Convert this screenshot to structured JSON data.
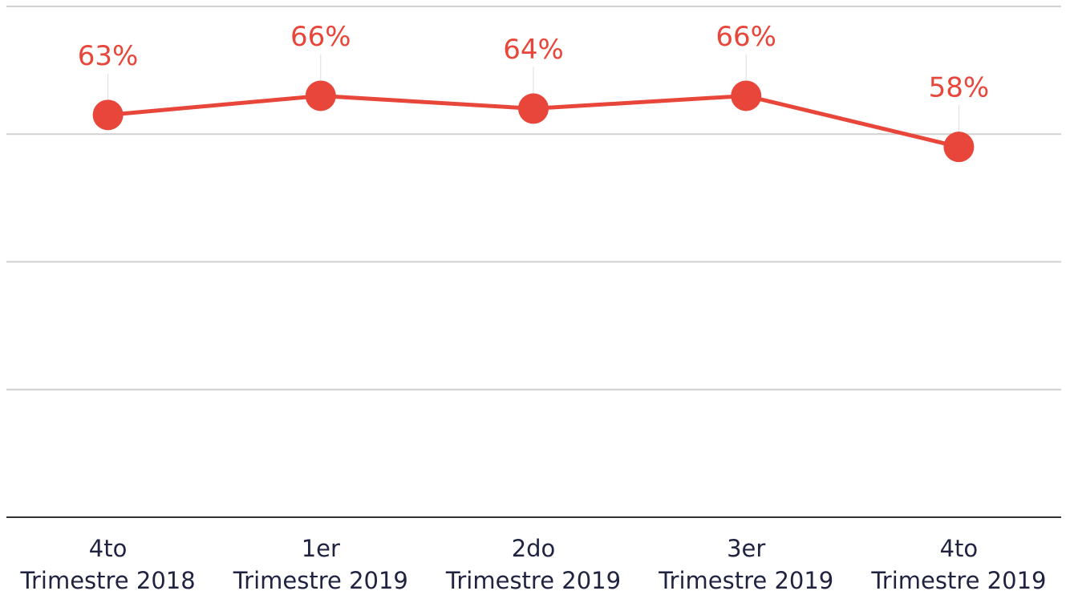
{
  "chart_data": {
    "type": "line",
    "categories": [
      [
        "4to",
        "Trimestre 2018"
      ],
      [
        "1er",
        "Trimestre 2019"
      ],
      [
        "2do",
        "Trimestre 2019"
      ],
      [
        "3er",
        "Trimestre 2019"
      ],
      [
        "4to",
        "Trimestre 2019"
      ]
    ],
    "series": [
      {
        "color": "#e8463a",
        "values": [
          63,
          66,
          64,
          66,
          58
        ],
        "value_labels": [
          "63%",
          "66%",
          "64%",
          "66%",
          "58%"
        ]
      }
    ],
    "ylim": [
      0,
      80
    ],
    "yticks": [
      0,
      20,
      40,
      60,
      80
    ],
    "grid": true
  }
}
